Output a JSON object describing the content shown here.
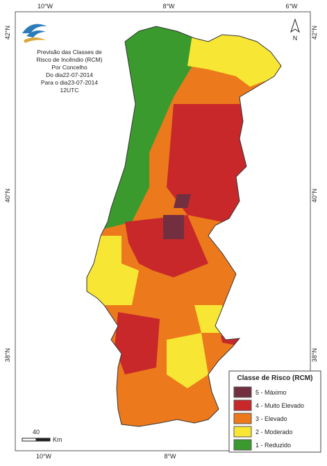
{
  "title": [
    "Previsão das Classes de",
    "Risco de Incêndio (RCM)",
    "Por Concelho",
    "Do dia22-07-2014",
    "Para o dia23-07-2014",
    "12UTC"
  ],
  "axis_labels": {
    "top": [
      "10°W",
      "8°W",
      "6°W"
    ],
    "bottom": [
      "10°W",
      "8°W"
    ],
    "left": [
      "42°N",
      "40°N",
      "38°N"
    ],
    "right": [
      "42°N",
      "40°N",
      "38°N"
    ]
  },
  "legend": {
    "title": "Classe de Risco (RCM)",
    "items": [
      {
        "label": "5 - Máximo",
        "color": "#722f3f"
      },
      {
        "label": "4 - Muito Elevado",
        "color": "#c8282a"
      },
      {
        "label": "3 - Elevado",
        "color": "#ec7a1c"
      },
      {
        "label": "2 - Moderado",
        "color": "#f7e634"
      },
      {
        "label": "1 - Reduzido",
        "color": "#3a9a2e"
      }
    ]
  },
  "scale_bar": {
    "value": "40",
    "unit": "Km"
  },
  "north": "N"
}
